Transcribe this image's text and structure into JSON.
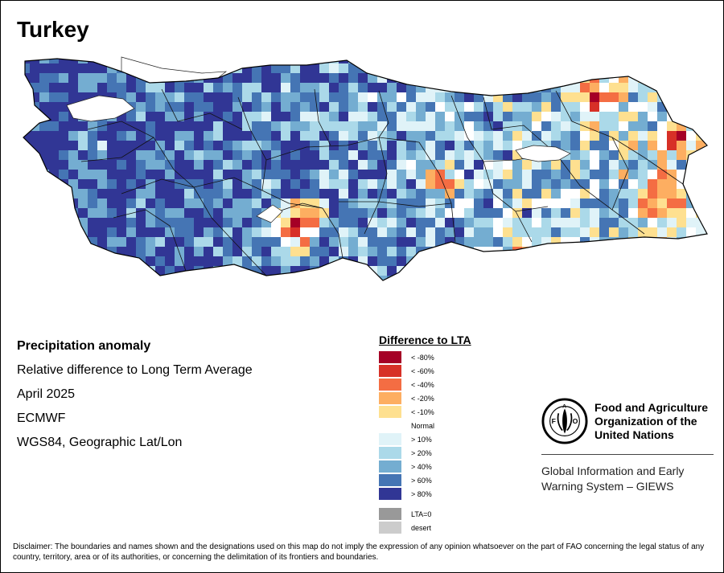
{
  "title": "Turkey",
  "info": {
    "heading": "Precipitation anomaly",
    "subtitle": "Relative difference to Long Term Average",
    "period": "April 2025",
    "source": "ECMWF",
    "projection": "WGS84, Geographic Lat/Lon"
  },
  "legend": {
    "title": "Difference to LTA",
    "classes": [
      {
        "label": "< -80%",
        "color": "#a50026"
      },
      {
        "label": "< -60%",
        "color": "#d73027"
      },
      {
        "label": "< -40%",
        "color": "#f46d43"
      },
      {
        "label": "< -20%",
        "color": "#fdae61"
      },
      {
        "label": "< -10%",
        "color": "#fee090"
      },
      {
        "label": "Normal",
        "color": "#ffffff"
      },
      {
        "label": "> 10%",
        "color": "#e0f3f8"
      },
      {
        "label": "> 20%",
        "color": "#abd9e9"
      },
      {
        "label": "> 40%",
        "color": "#74add1"
      },
      {
        "label": "> 60%",
        "color": "#4575b4"
      },
      {
        "label": "> 80%",
        "color": "#313695"
      }
    ],
    "extra": [
      {
        "label": "LTA=0",
        "color": "#999999"
      },
      {
        "label": "desert",
        "color": "#cccccc"
      }
    ]
  },
  "organization": {
    "logo_text": "FAO",
    "logo_ring_text": "FIAT PANIS",
    "name_lines": [
      "Food and Agriculture",
      "Organization of the",
      "United Nations"
    ],
    "system_lines": [
      "Global Information and Early",
      "Warning System – GIEWS"
    ]
  },
  "disclaimer": "Disclaimer: The boundaries and names shown and the designations used on this map do not imply the expression of any opinion whatsoever on the part of FAO concerning the legal status of any country, territory, area or of its authorities, or concerning the delimitation of its frontiers and boundaries."
}
